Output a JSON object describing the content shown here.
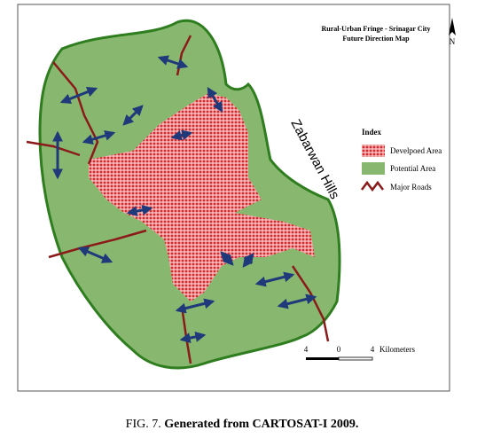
{
  "map": {
    "title": [
      "Rural-Urban Fringe - Srinagar City",
      "Future Direction Map"
    ],
    "north": "N",
    "label": "Zabarwan Hills",
    "legend": {
      "title": "Index",
      "items": [
        "Develpoed Area",
        "Potential Area",
        "Major Roads"
      ]
    },
    "scale": {
      "ticks": [
        "4",
        "0",
        "4"
      ],
      "unit": "Kilometers"
    }
  },
  "caption": {
    "fig": "FIG. 7.",
    "text": "Generated from CARTOSAT-I 2009."
  }
}
